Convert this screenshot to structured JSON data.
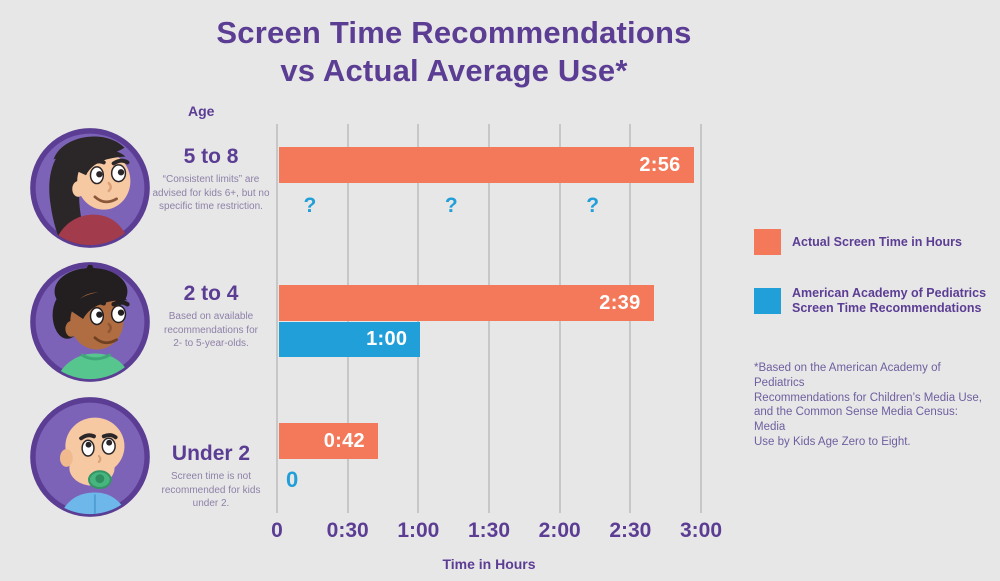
{
  "title": {
    "line1": "Screen Time Recommendations",
    "line2": "vs Actual Average Use*"
  },
  "y_axis_title": "Age",
  "x_axis_title": "Time in Hours",
  "colors": {
    "actual": "#f4795b",
    "recommended": "#219fd8",
    "heading_text": "#5b3d94",
    "note_text": "#8d81a8",
    "footnote_text": "#6e5f9f",
    "background": "#e8e7e7",
    "gridline": "#c8c7c8",
    "bar_value_text": "#ffffff",
    "avatar_ring": "#5b3d94",
    "avatar_fill": "#7c63b8"
  },
  "legend": {
    "items": [
      {
        "series": "actual",
        "label_lines": [
          "Actual Screen Time in Hours"
        ]
      },
      {
        "series": "recommended",
        "label_lines": [
          "American Academy of Pediatrics",
          "Screen Time Recommendations"
        ]
      }
    ]
  },
  "footnote_lines": [
    "*Based on the American Academy of Pediatrics",
    "Recommendations for Children’s Media Use,",
    "and the Common Sense Media Census: Media",
    "Use by Kids Age Zero to Eight."
  ],
  "chart_data": {
    "type": "bar",
    "orientation": "horizontal",
    "title": "Screen Time Recommendations vs Actual Average Use*",
    "xlabel": "Time in Hours",
    "ylabel": "Age",
    "xlim_minutes": [
      0,
      180
    ],
    "grid": true,
    "legend_position": "right",
    "x_ticks": [
      {
        "label": "0",
        "minutes": 0
      },
      {
        "label": "0:30",
        "minutes": 30
      },
      {
        "label": "1:00",
        "minutes": 60
      },
      {
        "label": "1:30",
        "minutes": 90
      },
      {
        "label": "2:00",
        "minutes": 120
      },
      {
        "label": "2:30",
        "minutes": 150
      },
      {
        "label": "3:00",
        "minutes": 180
      }
    ],
    "series_names": [
      "Actual Screen Time in Hours",
      "American Academy of Pediatrics Screen Time Recommendations"
    ],
    "categories": [
      {
        "age": "5 to 8",
        "avatar": "girl",
        "note_lines": [
          "“Consistent limits” are",
          "advised for kids 6+, but no",
          "specific time restriction."
        ],
        "actual": {
          "label": "2:56",
          "minutes": 176
        },
        "recommended": {
          "label": "?",
          "minutes": null,
          "unknown": true,
          "question_mark_minutes": [
            14,
            74,
            134
          ]
        }
      },
      {
        "age": "2 to 4",
        "avatar": "boy",
        "note_lines": [
          "Based on available",
          "recommendations for",
          "2- to 5-year-olds."
        ],
        "actual": {
          "label": "2:39",
          "minutes": 159
        },
        "recommended": {
          "label": "1:00",
          "minutes": 60
        }
      },
      {
        "age": "Under 2",
        "avatar": "baby",
        "note_lines": [
          "Screen time is not",
          "recommended for kids",
          "under 2."
        ],
        "actual": {
          "label": "0:42",
          "minutes": 42
        },
        "recommended": {
          "label": "0",
          "minutes": 0
        }
      }
    ]
  }
}
